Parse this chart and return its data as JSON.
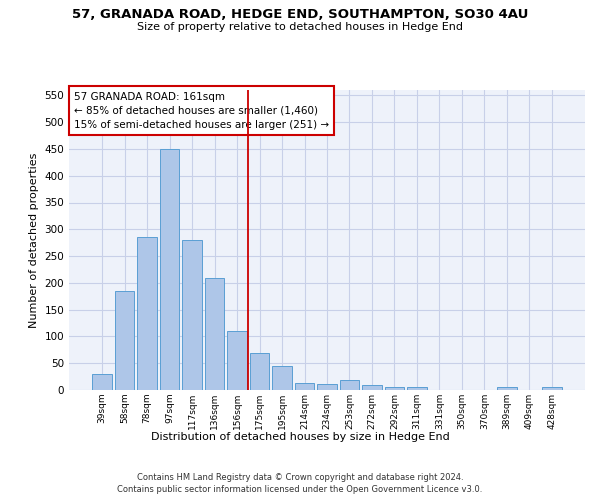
{
  "title1": "57, GRANADA ROAD, HEDGE END, SOUTHAMPTON, SO30 4AU",
  "title2": "Size of property relative to detached houses in Hedge End",
  "xlabel": "Distribution of detached houses by size in Hedge End",
  "ylabel": "Number of detached properties",
  "categories": [
    "39sqm",
    "58sqm",
    "78sqm",
    "97sqm",
    "117sqm",
    "136sqm",
    "156sqm",
    "175sqm",
    "195sqm",
    "214sqm",
    "234sqm",
    "253sqm",
    "272sqm",
    "292sqm",
    "311sqm",
    "331sqm",
    "350sqm",
    "370sqm",
    "389sqm",
    "409sqm",
    "428sqm"
  ],
  "values": [
    30,
    185,
    285,
    450,
    280,
    210,
    110,
    70,
    45,
    13,
    11,
    18,
    10,
    5,
    5,
    0,
    0,
    0,
    5,
    0,
    5
  ],
  "bar_color": "#aec6e8",
  "bar_edge_color": "#5a9fd4",
  "vline_color": "#cc0000",
  "vline_pos": 6.5,
  "annotation_line1": "57 GRANADA ROAD: 161sqm",
  "annotation_line2": "← 85% of detached houses are smaller (1,460)",
  "annotation_line3": "15% of semi-detached houses are larger (251) →",
  "annotation_box_color": "#cc0000",
  "ylim": [
    0,
    560
  ],
  "yticks": [
    0,
    50,
    100,
    150,
    200,
    250,
    300,
    350,
    400,
    450,
    500,
    550
  ],
  "footer1": "Contains HM Land Registry data © Crown copyright and database right 2024.",
  "footer2": "Contains public sector information licensed under the Open Government Licence v3.0.",
  "bg_color": "#eef2fa",
  "grid_color": "#c8d0e8"
}
